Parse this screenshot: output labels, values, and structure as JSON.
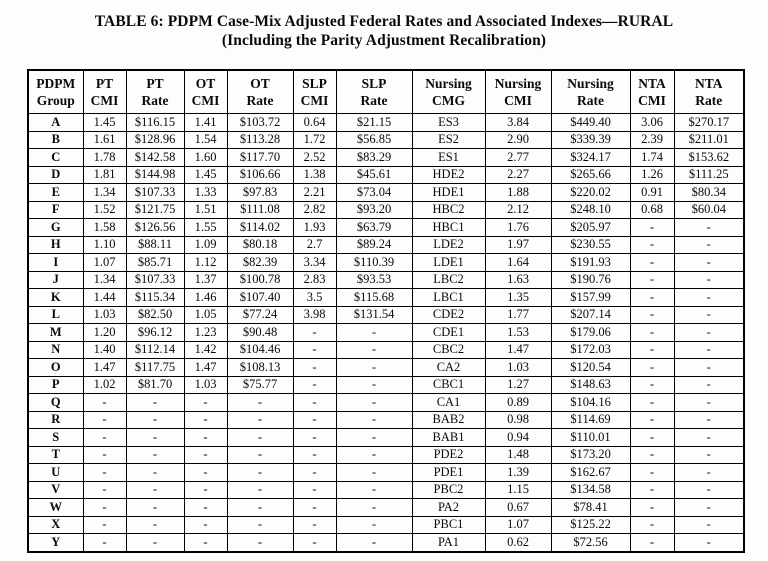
{
  "title": {
    "line1": "TABLE 6:  PDPM Case-Mix Adjusted Federal Rates and Associated Indexes—RURAL",
    "line2": "(Including the Parity Adjustment Recalibration)"
  },
  "table": {
    "headers": [
      {
        "l1": "PDPM",
        "l2": "Group"
      },
      {
        "l1": "PT",
        "l2": "CMI"
      },
      {
        "l1": "PT",
        "l2": "Rate"
      },
      {
        "l1": "OT",
        "l2": "CMI"
      },
      {
        "l1": "OT",
        "l2": "Rate"
      },
      {
        "l1": "SLP",
        "l2": "CMI"
      },
      {
        "l1": "SLP",
        "l2": "Rate"
      },
      {
        "l1": "Nursing",
        "l2": "CMG"
      },
      {
        "l1": "Nursing",
        "l2": "CMI"
      },
      {
        "l1": "Nursing",
        "l2": "Rate"
      },
      {
        "l1": "NTA",
        "l2": "CMI"
      },
      {
        "l1": "NTA",
        "l2": "Rate"
      }
    ],
    "rows": [
      [
        "A",
        "1.45",
        "$116.15",
        "1.41",
        "$103.72",
        "0.64",
        "$21.15",
        "ES3",
        "3.84",
        "$449.40",
        "3.06",
        "$270.17"
      ],
      [
        "B",
        "1.61",
        "$128.96",
        "1.54",
        "$113.28",
        "1.72",
        "$56.85",
        "ES2",
        "2.90",
        "$339.39",
        "2.39",
        "$211.01"
      ],
      [
        "C",
        "1.78",
        "$142.58",
        "1.60",
        "$117.70",
        "2.52",
        "$83.29",
        "ES1",
        "2.77",
        "$324.17",
        "1.74",
        "$153.62"
      ],
      [
        "D",
        "1.81",
        "$144.98",
        "1.45",
        "$106.66",
        "1.38",
        "$45.61",
        "HDE2",
        "2.27",
        "$265.66",
        "1.26",
        "$111.25"
      ],
      [
        "E",
        "1.34",
        "$107.33",
        "1.33",
        "$97.83",
        "2.21",
        "$73.04",
        "HDE1",
        "1.88",
        "$220.02",
        "0.91",
        "$80.34"
      ],
      [
        "F",
        "1.52",
        "$121.75",
        "1.51",
        "$111.08",
        "2.82",
        "$93.20",
        "HBC2",
        "2.12",
        "$248.10",
        "0.68",
        "$60.04"
      ],
      [
        "G",
        "1.58",
        "$126.56",
        "1.55",
        "$114.02",
        "1.93",
        "$63.79",
        "HBC1",
        "1.76",
        "$205.97",
        "-",
        "-"
      ],
      [
        "H",
        "1.10",
        "$88.11",
        "1.09",
        "$80.18",
        "2.7",
        "$89.24",
        "LDE2",
        "1.97",
        "$230.55",
        "-",
        "-"
      ],
      [
        "I",
        "1.07",
        "$85.71",
        "1.12",
        "$82.39",
        "3.34",
        "$110.39",
        "LDE1",
        "1.64",
        "$191.93",
        "-",
        "-"
      ],
      [
        "J",
        "1.34",
        "$107.33",
        "1.37",
        "$100.78",
        "2.83",
        "$93.53",
        "LBC2",
        "1.63",
        "$190.76",
        "-",
        "-"
      ],
      [
        "K",
        "1.44",
        "$115.34",
        "1.46",
        "$107.40",
        "3.5",
        "$115.68",
        "LBC1",
        "1.35",
        "$157.99",
        "-",
        "-"
      ],
      [
        "L",
        "1.03",
        "$82.50",
        "1.05",
        "$77.24",
        "3.98",
        "$131.54",
        "CDE2",
        "1.77",
        "$207.14",
        "-",
        "-"
      ],
      [
        "M",
        "1.20",
        "$96.12",
        "1.23",
        "$90.48",
        "-",
        "-",
        "CDE1",
        "1.53",
        "$179.06",
        "-",
        "-"
      ],
      [
        "N",
        "1.40",
        "$112.14",
        "1.42",
        "$104.46",
        "-",
        "-",
        "CBC2",
        "1.47",
        "$172.03",
        "-",
        "-"
      ],
      [
        "O",
        "1.47",
        "$117.75",
        "1.47",
        "$108.13",
        "-",
        "-",
        "CA2",
        "1.03",
        "$120.54",
        "-",
        "-"
      ],
      [
        "P",
        "1.02",
        "$81.70",
        "1.03",
        "$75.77",
        "-",
        "-",
        "CBC1",
        "1.27",
        "$148.63",
        "-",
        "-"
      ],
      [
        "Q",
        "-",
        "-",
        "-",
        "-",
        "-",
        "-",
        "CA1",
        "0.89",
        "$104.16",
        "-",
        "-"
      ],
      [
        "R",
        "-",
        "-",
        "-",
        "-",
        "-",
        "-",
        "BAB2",
        "0.98",
        "$114.69",
        "-",
        "-"
      ],
      [
        "S",
        "-",
        "-",
        "-",
        "-",
        "-",
        "-",
        "BAB1",
        "0.94",
        "$110.01",
        "-",
        "-"
      ],
      [
        "T",
        "-",
        "-",
        "-",
        "-",
        "-",
        "-",
        "PDE2",
        "1.48",
        "$173.20",
        "-",
        "-"
      ],
      [
        "U",
        "-",
        "-",
        "-",
        "-",
        "-",
        "-",
        "PDE1",
        "1.39",
        "$162.67",
        "-",
        "-"
      ],
      [
        "V",
        "-",
        "-",
        "-",
        "-",
        "-",
        "-",
        "PBC2",
        "1.15",
        "$134.58",
        "-",
        "-"
      ],
      [
        "W",
        "-",
        "-",
        "-",
        "-",
        "-",
        "-",
        "PA2",
        "0.67",
        "$78.41",
        "-",
        "-"
      ],
      [
        "X",
        "-",
        "-",
        "-",
        "-",
        "-",
        "-",
        "PBC1",
        "1.07",
        "$125.22",
        "-",
        "-"
      ],
      [
        "Y",
        "-",
        "-",
        "-",
        "-",
        "-",
        "-",
        "PA1",
        "0.62",
        "$72.56",
        "-",
        "-"
      ]
    ]
  }
}
